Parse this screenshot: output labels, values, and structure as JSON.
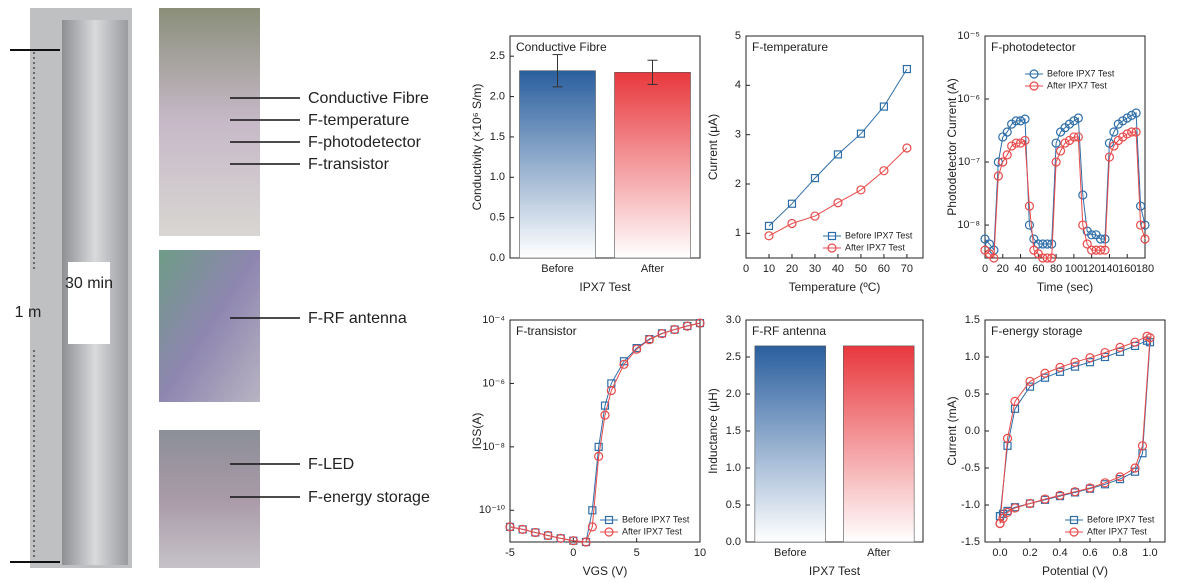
{
  "photo_labels": {
    "height": "1 m",
    "duration": "30 min",
    "items": [
      "Conductive Fibre",
      "F-temperature",
      "F-photodetector",
      "F-transistor",
      "F-RF antenna",
      "F-LED",
      "F-energy storage"
    ]
  },
  "chart_data": [
    {
      "type": "bar",
      "title": "Conductive Fibre",
      "x_label": "IPX7 Test",
      "y_label": "Conductivity (×10⁶ S/m)",
      "categories": [
        "Before",
        "After"
      ],
      "values": [
        2.32,
        2.3
      ],
      "errors": [
        0.2,
        0.15
      ],
      "colors": [
        "#2a5f9e",
        "#e8383d"
      ],
      "ylim": [
        0,
        2.75
      ],
      "yticks": [
        {
          "value": 0,
          "label": "0.0"
        },
        {
          "value": 0.5,
          "label": "0.5"
        },
        {
          "value": 1,
          "label": "1.0"
        },
        {
          "value": 1.5,
          "label": "1.5"
        },
        {
          "value": 2,
          "label": "2.0"
        },
        2.5
      ]
    },
    {
      "type": "line",
      "title": "F-temperature",
      "x_label": "Temperature (ºC)",
      "y_label": "Current (μA)",
      "legend": "lower right",
      "x": [
        10,
        20,
        30,
        40,
        50,
        60,
        70
      ],
      "series": [
        {
          "name": "Before IPX7 Test",
          "color": "#2f6ea8",
          "marker": "square",
          "values": [
            1.15,
            1.6,
            2.12,
            2.6,
            3.02,
            3.57,
            4.33
          ]
        },
        {
          "name": "After IPX7 Test",
          "color": "#e84a4a",
          "marker": "circle",
          "values": [
            0.95,
            1.2,
            1.35,
            1.62,
            1.88,
            2.27,
            2.73
          ]
        }
      ],
      "xlim": [
        0,
        77
      ],
      "xticks": [
        0,
        10,
        20,
        30,
        40,
        50,
        60,
        70
      ],
      "ylim": [
        0.5,
        5
      ],
      "yticks": [
        1,
        2,
        3,
        4,
        5
      ]
    },
    {
      "type": "line",
      "title": "F-photodetector",
      "x_label": "Time (sec)",
      "y_label": "Photodetector Current (A)",
      "legend": "upper center",
      "log_y": true,
      "x": [
        0,
        5,
        10,
        15,
        20,
        25,
        30,
        35,
        40,
        45,
        50,
        55,
        60,
        65,
        70,
        75,
        80,
        85,
        90,
        95,
        100,
        105,
        110,
        115,
        120,
        125,
        130,
        135,
        140,
        145,
        150,
        155,
        160,
        165,
        170,
        175,
        180
      ],
      "series": [
        {
          "name": "Before IPX7 Test",
          "color": "#2f6ea8",
          "marker": "circle",
          "values": [
            6e-09,
            5e-09,
            4e-09,
            1e-07,
            2.5e-07,
            3e-07,
            4e-07,
            4.5e-07,
            4.5e-07,
            4.8e-07,
            1e-08,
            6e-09,
            5e-09,
            5e-09,
            5e-09,
            5e-09,
            2e-07,
            3e-07,
            3.5e-07,
            4e-07,
            4.5e-07,
            5e-07,
            3e-08,
            8e-09,
            7e-09,
            7e-09,
            6e-09,
            6e-09,
            2e-07,
            3e-07,
            4e-07,
            4.5e-07,
            5e-07,
            5.5e-07,
            6e-07,
            2e-08,
            1e-08
          ]
        },
        {
          "name": "After IPX7 Test",
          "color": "#e84a4a",
          "marker": "circle",
          "values": [
            4e-09,
            3.5e-09,
            3e-09,
            6e-08,
            1e-07,
            1.3e-07,
            1.8e-07,
            2e-07,
            2e-07,
            2.2e-07,
            2e-08,
            4e-09,
            3.5e-09,
            3e-09,
            3e-09,
            3e-09,
            1e-07,
            1.5e-07,
            2e-07,
            2.2e-07,
            2.5e-07,
            2.5e-07,
            1e-08,
            5e-09,
            4e-09,
            4e-09,
            4e-09,
            4e-09,
            1.2e-07,
            1.8e-07,
            2.2e-07,
            2.5e-07,
            2.8e-07,
            3e-07,
            3e-07,
            1e-08,
            6e-09
          ]
        }
      ],
      "xlim": [
        0,
        180
      ],
      "xticks": [
        0,
        20,
        40,
        60,
        80,
        100,
        120,
        140,
        160,
        180
      ],
      "ylim": [
        3e-09,
        1e-05
      ],
      "yticks": [
        {
          "value": 1e-08,
          "label": "10⁻⁸"
        },
        {
          "value": 1e-07,
          "label": "10⁻⁷"
        },
        {
          "value": 1e-06,
          "label": "10⁻⁶"
        },
        {
          "value": 1e-05,
          "label": "10⁻⁵"
        }
      ]
    },
    {
      "type": "line",
      "title": "F-transistor",
      "x_label": "VGS (V)",
      "y_label": "IGS(A)",
      "legend": "lower right",
      "log_y": true,
      "series": [
        {
          "name": "Before IPX7 Test",
          "color": "#2f6ea8",
          "marker": "square",
          "x": [
            -5,
            -4,
            -3,
            -2,
            -1,
            0,
            1,
            1.5,
            2,
            2.5,
            3,
            4,
            5,
            6,
            7,
            8,
            9,
            10
          ],
          "values": [
            3e-11,
            2.5e-11,
            2e-11,
            1.6e-11,
            1.3e-11,
            1.1e-11,
            1e-11,
            1e-10,
            1e-08,
            2e-07,
            1e-06,
            5e-06,
            1.3e-05,
            2.5e-05,
            3.8e-05,
            5e-05,
            6.5e-05,
            8e-05
          ]
        },
        {
          "name": "After IPX7 Test",
          "color": "#e84a4a",
          "marker": "circle",
          "x": [
            -5,
            -4,
            -3,
            -2,
            -1,
            0,
            1,
            1.5,
            2,
            2.5,
            3,
            4,
            5,
            6,
            7,
            8,
            9,
            10
          ],
          "values": [
            3e-11,
            2.5e-11,
            2e-11,
            1.6e-11,
            1.3e-11,
            1.1e-11,
            1e-11,
            3e-11,
            5e-09,
            1e-07,
            6e-07,
            4e-06,
            1.2e-05,
            2.4e-05,
            3.7e-05,
            5e-05,
            6.4e-05,
            8e-05
          ]
        }
      ],
      "xlim": [
        -5,
        10
      ],
      "xticks": [
        -5,
        0,
        5,
        10
      ],
      "ylim": [
        1e-11,
        0.0001
      ],
      "yticks": [
        {
          "value": 1e-10,
          "label": "10⁻¹⁰"
        },
        {
          "value": 1e-08,
          "label": "10⁻⁸"
        },
        {
          "value": 1e-06,
          "label": "10⁻⁶"
        },
        {
          "value": 0.0001,
          "label": "10⁻⁴"
        }
      ]
    },
    {
      "type": "bar",
      "title": "F-RF antenna",
      "x_label": "IPX7 Test",
      "y_label": "Inductance (μH)",
      "categories": [
        "Before",
        "After"
      ],
      "values": [
        2.65,
        2.65
      ],
      "colors": [
        "#2a5f9e",
        "#e8383d"
      ],
      "ylim": [
        0,
        3
      ],
      "yticks": [
        {
          "value": 0,
          "label": "0.0"
        },
        {
          "value": 0.5,
          "label": "0.5"
        },
        {
          "value": 1,
          "label": "1.0"
        },
        {
          "value": 1.5,
          "label": "1.5"
        },
        {
          "value": 2,
          "label": "2.0"
        },
        {
          "value": 2.5,
          "label": "2.5"
        },
        {
          "value": 3,
          "label": "3.0"
        }
      ]
    },
    {
      "type": "line",
      "title": "F-energy storage",
      "x_label": "Potential (V)",
      "y_label": "Current (mA)",
      "legend": "lower right",
      "series": [
        {
          "name": "Before IPX7 Test",
          "color": "#2f6ea8",
          "marker": "square",
          "x": [
            0,
            0.05,
            0.1,
            0.2,
            0.3,
            0.4,
            0.5,
            0.6,
            0.7,
            0.8,
            0.9,
            0.98,
            1,
            0.95,
            0.9,
            0.8,
            0.7,
            0.6,
            0.5,
            0.4,
            0.3,
            0.2,
            0.1,
            0.05,
            0.02,
            0
          ],
          "values": [
            -1.15,
            -0.2,
            0.3,
            0.6,
            0.72,
            0.8,
            0.87,
            0.93,
            1,
            1.07,
            1.15,
            1.22,
            1.2,
            -0.3,
            -0.55,
            -0.65,
            -0.72,
            -0.78,
            -0.83,
            -0.88,
            -0.93,
            -0.98,
            -1.03,
            -1.08,
            -1.12,
            -1.15
          ]
        },
        {
          "name": "After IPX7 Test",
          "color": "#e84a4a",
          "marker": "circle",
          "x": [
            0,
            0.05,
            0.1,
            0.2,
            0.3,
            0.4,
            0.5,
            0.6,
            0.7,
            0.8,
            0.9,
            0.98,
            1,
            0.95,
            0.9,
            0.8,
            0.7,
            0.6,
            0.5,
            0.4,
            0.3,
            0.2,
            0.1,
            0.05,
            0.02,
            0
          ],
          "values": [
            -1.25,
            -0.1,
            0.4,
            0.67,
            0.78,
            0.86,
            0.93,
            0.99,
            1.06,
            1.13,
            1.2,
            1.28,
            1.26,
            -0.2,
            -0.5,
            -0.62,
            -0.7,
            -0.77,
            -0.82,
            -0.87,
            -0.92,
            -0.98,
            -1.04,
            -1.1,
            -1.18,
            -1.25
          ]
        }
      ],
      "xlim": [
        -0.1,
        1.1
      ],
      "xticks": [
        {
          "value": 0,
          "label": "0.0"
        },
        0.2,
        0.4,
        0.6,
        0.8,
        {
          "value": 1,
          "label": "1.0"
        }
      ],
      "ylim": [
        -1.5,
        1.5
      ],
      "yticks": [
        -1.5,
        {
          "value": -1,
          "label": "-1.0"
        },
        -0.5,
        {
          "value": 0,
          "label": "0.0"
        },
        0.5,
        {
          "value": 1,
          "label": "1.0"
        },
        1.5
      ]
    }
  ]
}
